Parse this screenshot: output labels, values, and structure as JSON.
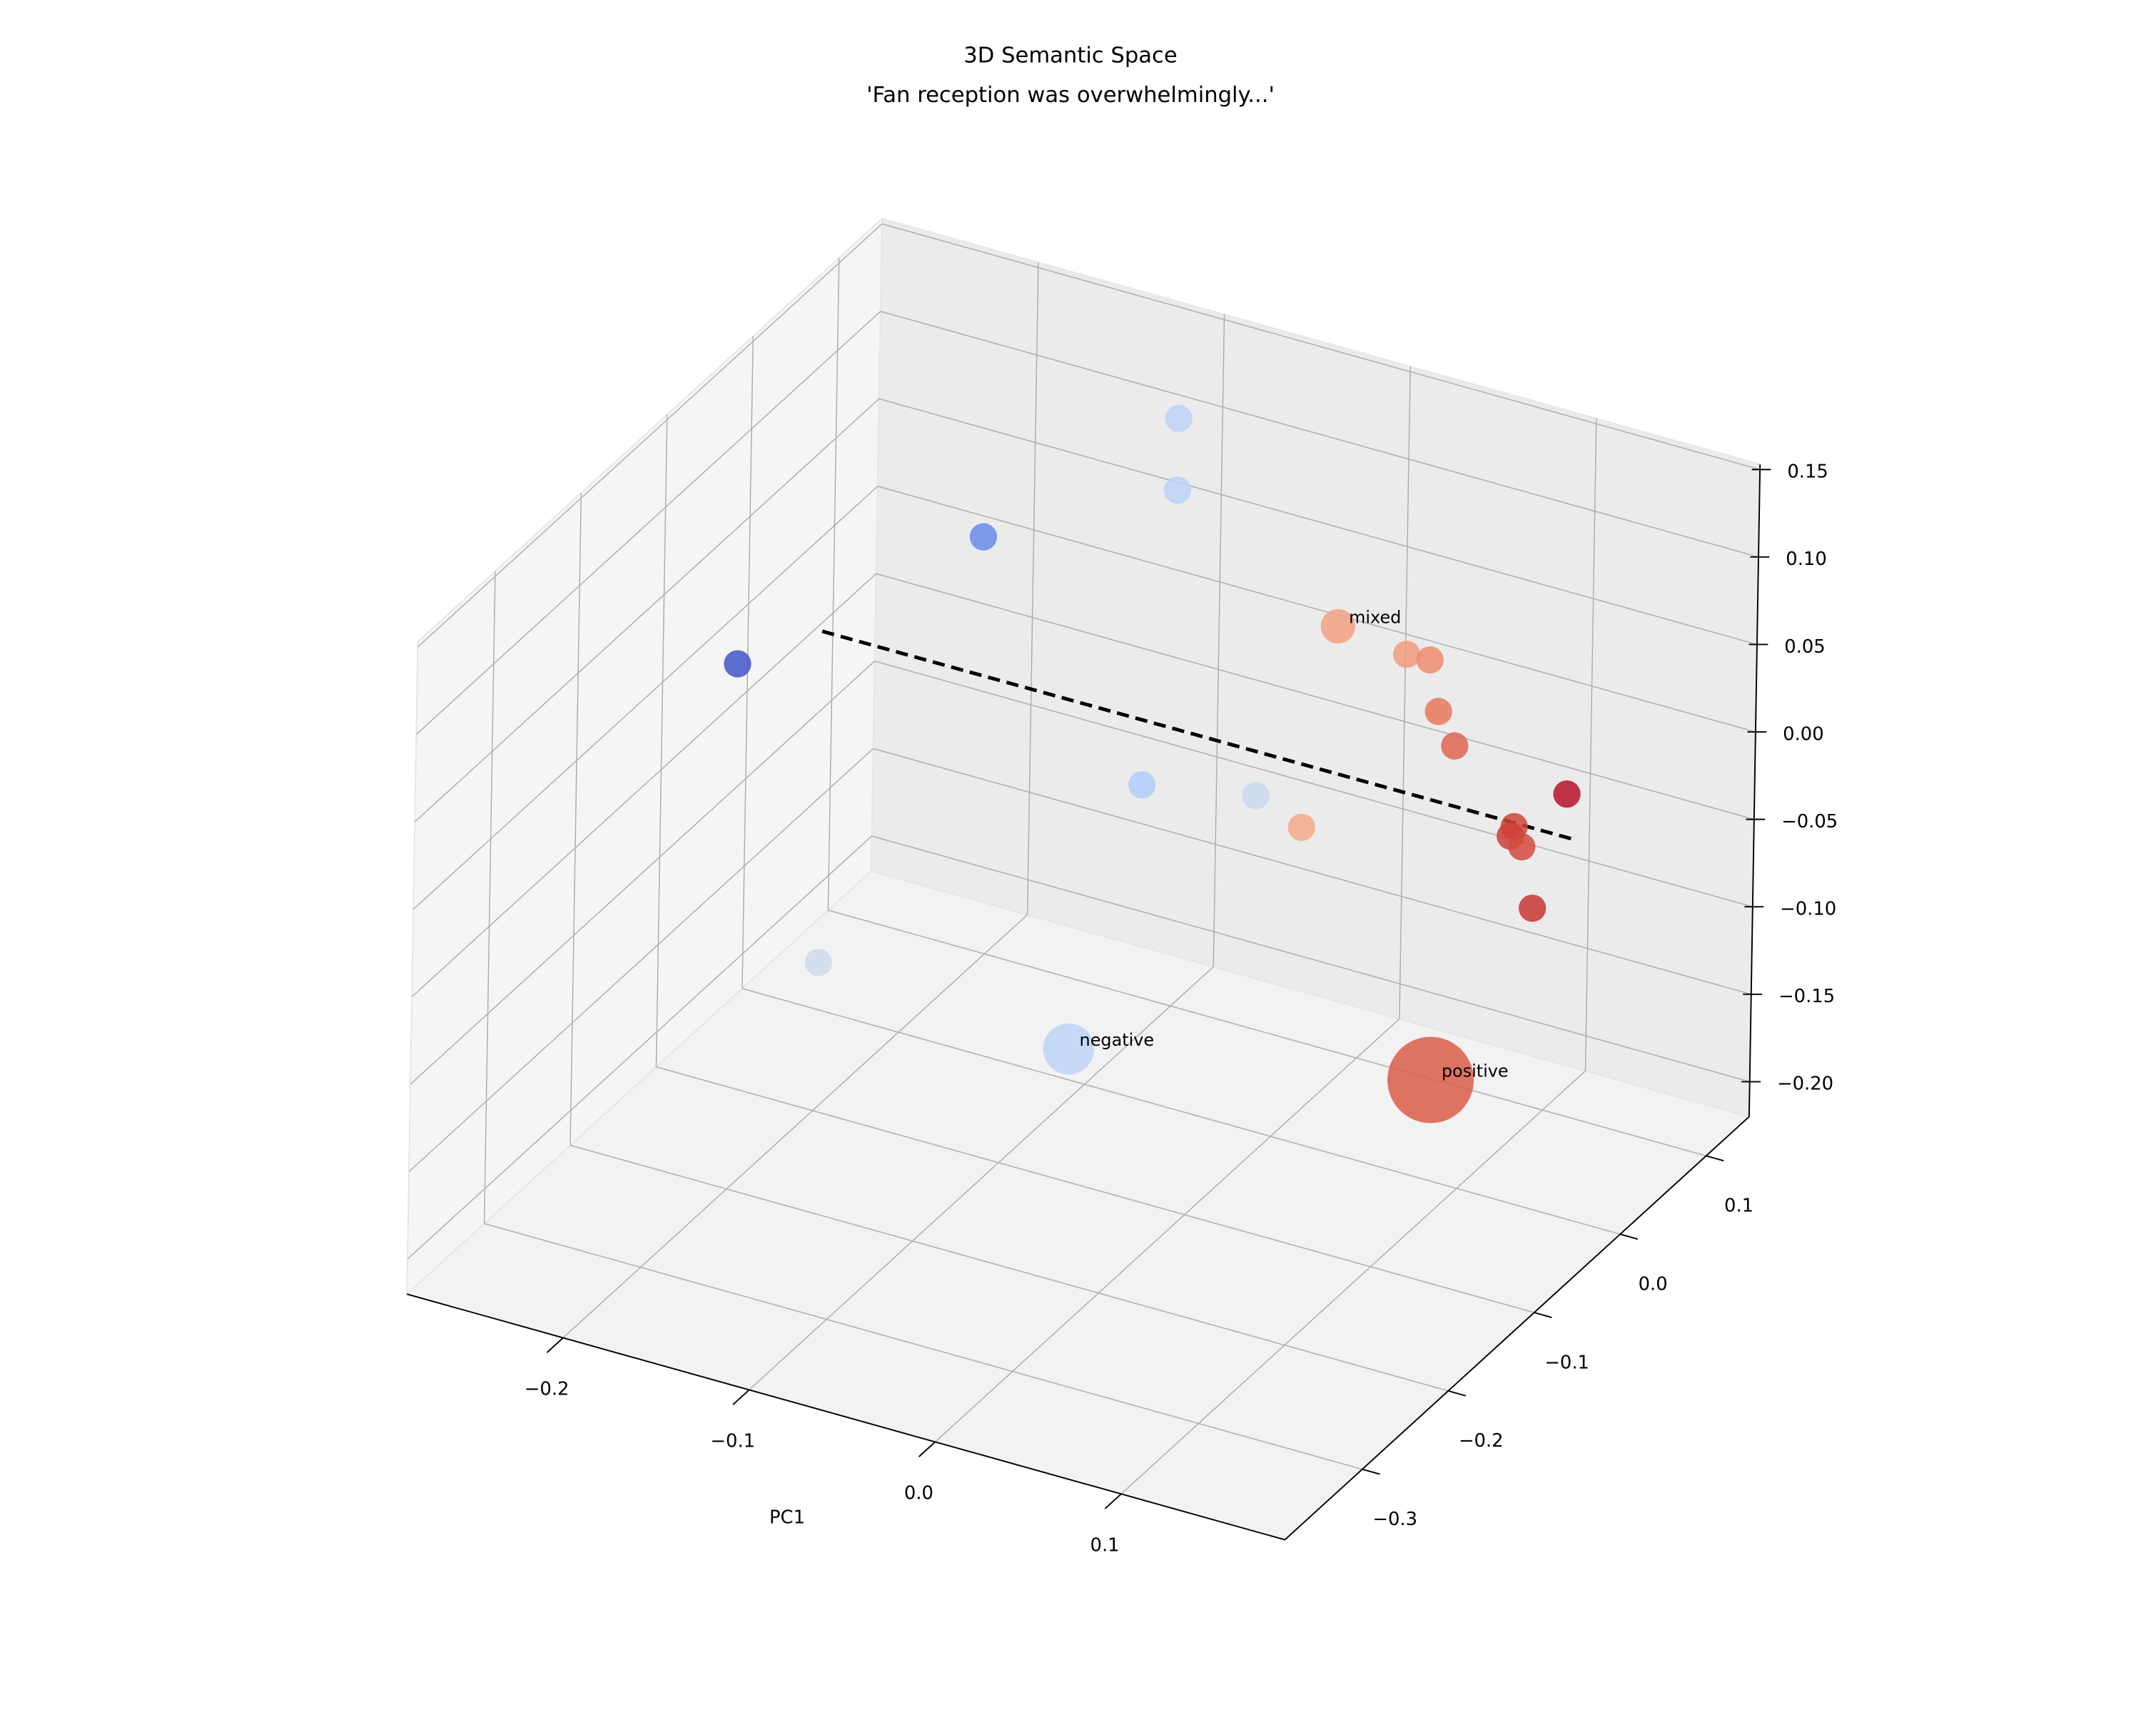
{
  "chart_data": {
    "type": "scatter3d",
    "title": "3D Semantic Space",
    "subtitle": "'Fan reception was overwhelmingly...'",
    "xlabel": "PC1",
    "xlim": [
      -0.284,
      0.188
    ],
    "ylim": [
      -0.39,
      0.15
    ],
    "zlim": [
      -0.22,
      0.153
    ],
    "xticks": [
      {
        "value": -0.2,
        "label": "−0.2"
      },
      {
        "value": -0.1,
        "label": "−0.1"
      },
      {
        "value": 0,
        "label": "0.0"
      },
      0.1
    ],
    "yticks": [
      {
        "value": -0.3,
        "label": "−0.3"
      },
      {
        "value": -0.2,
        "label": "−0.2"
      },
      {
        "value": -0.1,
        "label": "−0.1"
      },
      {
        "value": 0,
        "label": "0.0"
      },
      0.1
    ],
    "zticks": [
      {
        "value": -0.2,
        "label": "−0.20"
      },
      {
        "value": -0.15,
        "label": "−0.15"
      },
      {
        "value": -0.1,
        "label": "−0.10"
      },
      {
        "value": -0.05,
        "label": "−0.05"
      },
      {
        "value": 0,
        "label": "0.00"
      },
      0.05,
      {
        "value": 0.1,
        "label": "0.10"
      },
      0.15
    ],
    "grid": true,
    "x": [
      -0.099,
      -0.099,
      -0.178,
      -0.235,
      0.037,
      0.074,
      0.111,
      0.116,
      0.125,
      0.161,
      0.182,
      0.18,
      0.174,
      0.168,
      -0.042,
      0.019,
      0.056,
      -0.238,
      -0.03,
      0.164
    ],
    "y": [
      0.096,
      0.096,
      0.042,
      -0.12,
      -0.012,
      -0.012,
      -0.066,
      -0.066,
      -0.066,
      -0.012,
      -0.12,
      -0.12,
      -0.093,
      -0.066,
      -0.066,
      -0.066,
      -0.093,
      -0.012,
      -0.174,
      -0.174
    ],
    "z": [
      0.118,
      0.077,
      0.051,
      0.034,
      0.088,
      0.083,
      0.115,
      0.087,
      0.07,
      0.029,
      0.065,
      0.059,
      0.039,
      -0.01,
      -0.002,
      0.01,
      0.015,
      -0.186,
      -0.101,
      -0.061
    ],
    "sizes": [
      100,
      100,
      100,
      100,
      160,
      100,
      100,
      100,
      100,
      100,
      100,
      100,
      100,
      100,
      100,
      100,
      100,
      100,
      350,
      1000
    ],
    "colors": [
      "#bcd2f7",
      "#bcd2f7",
      "#6a8beb",
      "#4055c8",
      "#f2a183",
      "#f29a7e",
      "#ef8d70",
      "#e9785d",
      "#df6651",
      "#b8122a",
      "#d0463c",
      "#cc3f38",
      "#d24b40",
      "#c73735",
      "#b2ccfb",
      "#cad8ef",
      "#f3a98b",
      "#cfd9ea",
      "#bdd3f7",
      "#dc5d4a"
    ],
    "point_labels": [
      null,
      null,
      null,
      null,
      "mixed",
      null,
      null,
      null,
      null,
      null,
      null,
      null,
      null,
      null,
      null,
      null,
      null,
      null,
      "negative",
      "positive"
    ],
    "line": {
      "x": [
        -0.19,
        0.177
      ],
      "y": [
        -0.12,
        -0.039
      ],
      "z": [
        0.066,
        0.02
      ],
      "color": "#000000",
      "style": "dashed"
    }
  }
}
